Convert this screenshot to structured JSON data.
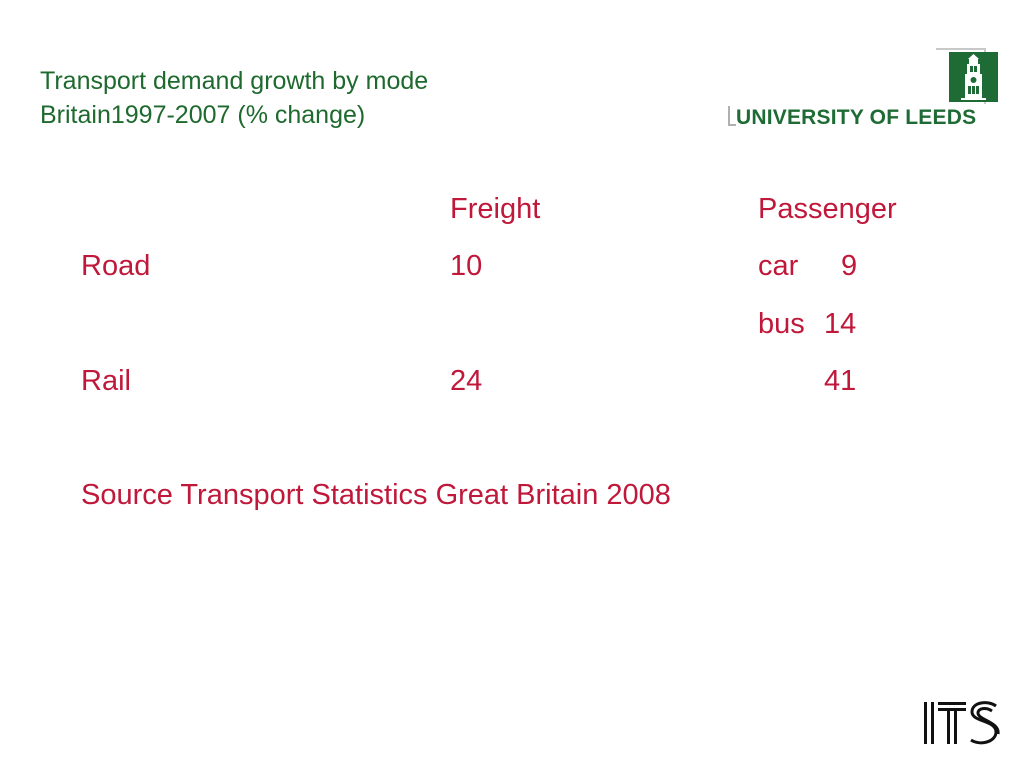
{
  "title": {
    "line1": "Transport demand growth by mode",
    "line2": "Britain1997-2007 (% change)"
  },
  "logo": {
    "text": "UNIVERSITY OF LEEDS"
  },
  "table": {
    "header_freight": "Freight",
    "header_passenger": "Passenger",
    "rows": [
      {
        "mode": "Road",
        "freight": "10",
        "passenger_label": "car",
        "passenger_value": "9"
      },
      {
        "mode": "",
        "freight": "",
        "passenger_label": "bus",
        "passenger_value": "14"
      },
      {
        "mode": "Rail",
        "freight": "24",
        "passenger_label": "",
        "passenger_value": "41"
      }
    ]
  },
  "source": "Source Transport Statistics Great Britain 2008",
  "footer_logo": "ITS",
  "colors": {
    "title": "#1e6a2e",
    "body_text": "#c0183a",
    "brand_green": "#1f6b35"
  }
}
